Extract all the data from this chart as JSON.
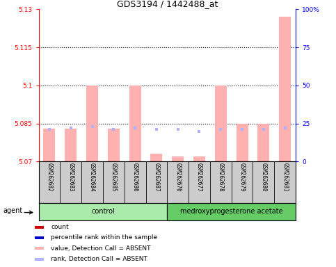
{
  "title": "GDS3194 / 1442488_at",
  "samples": [
    "GSM262682",
    "GSM262683",
    "GSM262684",
    "GSM262685",
    "GSM262686",
    "GSM262687",
    "GSM262676",
    "GSM262677",
    "GSM262678",
    "GSM262679",
    "GSM262680",
    "GSM262681"
  ],
  "ymin": 5.07,
  "ymax": 5.13,
  "yticks": [
    5.07,
    5.085,
    5.1,
    5.115,
    5.13
  ],
  "ytick_labels": [
    "5.07",
    "5.085",
    "5.1",
    "5.115",
    "5.13"
  ],
  "right_yticks": [
    0,
    25,
    50,
    75,
    100
  ],
  "right_ytick_labels": [
    "0",
    "25",
    "50",
    "75",
    "100%"
  ],
  "dotted_lines": [
    5.085,
    5.1,
    5.115
  ],
  "bar_values": [
    5.083,
    5.083,
    5.1,
    5.083,
    5.1,
    5.073,
    5.072,
    5.072,
    5.1,
    5.085,
    5.085,
    5.127
  ],
  "rank_values": [
    21,
    22,
    23,
    21,
    22,
    21,
    21,
    20,
    21,
    21,
    21,
    22
  ],
  "bar_color": "#ffb0b0",
  "rank_color": "#b0b0ff",
  "control_color": "#aaeaaa",
  "treatment_color": "#66cc66",
  "plot_bg": "#ffffff",
  "fig_bg": "#ffffff",
  "title_fontsize": 9,
  "axis_fontsize": 6.5,
  "legend_fontsize": 6.5,
  "sample_fontsize": 5.5,
  "group_fontsize": 7
}
